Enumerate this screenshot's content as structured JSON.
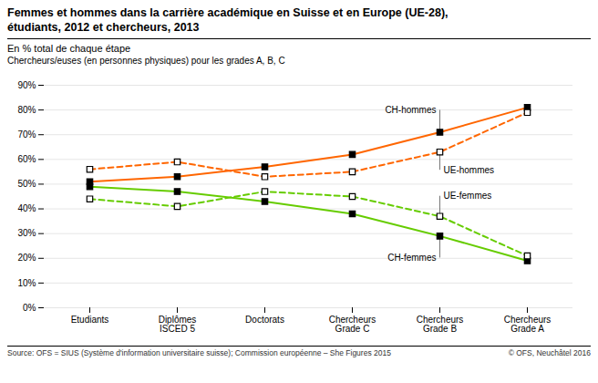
{
  "chart_data": {
    "type": "line",
    "title": "Femmes et hommes dans la carrière académique en Suisse et en Europe (UE-28),\nétudiants, 2012 et chercheurs, 2013",
    "subtitle": [
      "En % total de chaque étape",
      "Chercheurs/euses (en personnes physiques) pour les grades A, B, C"
    ],
    "source": "Source: OFS = SIUS (Système d'information universitaire suisse); Commission européenne – She Figures 2015",
    "copyright": "© OFS, Neuchâtel 2016",
    "categories": [
      "Etudiants",
      "Diplômes\nISCED 5",
      "Doctorats",
      "Chercheurs\nGrade C",
      "Chercheurs\nGrade B",
      "Chercheurs\nGrade A"
    ],
    "series": [
      {
        "name": "CH-hommes",
        "color": "#FF6600",
        "line_style": "solid",
        "marker": "square",
        "values": [
          51,
          53,
          57,
          62,
          71,
          81
        ]
      },
      {
        "name": "UE-hommes",
        "color": "#FF6600",
        "line_style": "dotted",
        "marker": "square-open",
        "values": [
          56,
          59,
          53,
          55,
          63,
          79
        ]
      },
      {
        "name": "CH-femmes",
        "color": "#66CC00",
        "line_style": "solid",
        "marker": "square",
        "values": [
          49,
          47,
          43,
          38,
          29,
          19
        ]
      },
      {
        "name": "UE-femmes",
        "color": "#66CC00",
        "line_style": "dotted",
        "marker": "square-open",
        "values": [
          44,
          41,
          47,
          45,
          37,
          21
        ]
      }
    ],
    "annotations": [
      {
        "text": "CH-hommes",
        "x": "Chercheurs\nGrade B",
        "y": 71
      },
      {
        "text": "UE-hommes",
        "x": "Chercheurs\nGrade B",
        "y": 63
      },
      {
        "text": "UE-femmes",
        "x": "Chercheurs\nGrade B",
        "y": 37
      },
      {
        "text": "CH-femmes",
        "x": "Chercheurs\nGrade B",
        "y": 29
      }
    ],
    "ylim": [
      0,
      90
    ],
    "yticks": [
      {
        "value": 0,
        "label": "0%"
      },
      {
        "value": 10,
        "label": "10%"
      },
      {
        "value": 20,
        "label": "20%"
      },
      {
        "value": 30,
        "label": "30%"
      },
      {
        "value": 40,
        "label": "40%"
      },
      {
        "value": 50,
        "label": "50%"
      },
      {
        "value": 60,
        "label": "60%"
      },
      {
        "value": 70,
        "label": "70%"
      },
      {
        "value": 80,
        "label": "80%"
      },
      {
        "value": 90,
        "label": "90%"
      }
    ],
    "grid": true
  }
}
